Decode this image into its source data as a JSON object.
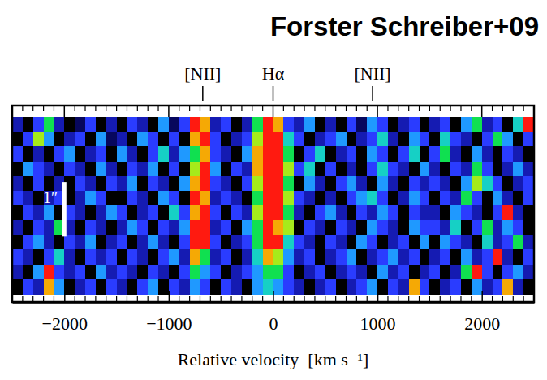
{
  "chart_data": {
    "type": "heatmap",
    "title": "Forster Schreiber+09",
    "x_label": "Relative velocity  [km s⁻¹]",
    "xlim": [
      -2500,
      2500
    ],
    "xticks": [
      {
        "value": -2000,
        "label": "−2000"
      },
      {
        "value": -1000,
        "label": "−1000"
      },
      0,
      1000,
      2000
    ],
    "minor_xticks": [
      -2400,
      -2300,
      -2200,
      -2100,
      -1900,
      -1800,
      -1700,
      -1600,
      -1500,
      -1400,
      -1300,
      -1200,
      -1100,
      -900,
      -800,
      -700,
      -600,
      -500,
      -400,
      -300,
      -200,
      -100,
      100,
      200,
      300,
      400,
      500,
      600,
      700,
      800,
      900,
      1100,
      1200,
      1300,
      1400,
      1500,
      1600,
      1700,
      1800,
      1900,
      2100,
      2200,
      2300,
      2400
    ],
    "ylim": [
      0,
      3.6
    ],
    "tick_labels": "x",
    "zlim": [
      0,
      9
    ],
    "lines": [
      {
        "label": "[NII]",
        "x": -674
      },
      {
        "label": "Hα",
        "x": 0
      },
      {
        "label": "[NII]",
        "x": 953
      }
    ],
    "scale_bar": {
      "label": "1″",
      "length": 1,
      "x": -2000,
      "y": 1.2
    },
    "x": [
      -2450,
      -2350,
      -2250,
      -2150,
      -2050,
      -1950,
      -1850,
      -1750,
      -1650,
      -1550,
      -1450,
      -1350,
      -1250,
      -1150,
      -1050,
      -950,
      -850,
      -750,
      -650,
      -550,
      -450,
      -350,
      -250,
      -150,
      -50,
      50,
      150,
      250,
      350,
      450,
      550,
      650,
      750,
      850,
      950,
      1050,
      1150,
      1250,
      1350,
      1450,
      1550,
      1650,
      1750,
      1850,
      1950,
      2050,
      2150,
      2250,
      2350,
      2450
    ],
    "y": [
      3.255,
      2.985,
      2.715,
      2.445,
      2.175,
      1.905,
      1.635,
      1.365,
      1.095,
      0.825,
      0.555,
      0.285
    ],
    "cells": [
      [
        2,
        0,
        3,
        6,
        2,
        0,
        1,
        3,
        0,
        2,
        0,
        3,
        2,
        0,
        4,
        1,
        3,
        9,
        8,
        2,
        3,
        0,
        2,
        6,
        9,
        8,
        3,
        2,
        4,
        0,
        2,
        0,
        3,
        1,
        4,
        3,
        0,
        2,
        3,
        0,
        2,
        3,
        0,
        4,
        6,
        2,
        3,
        0,
        5,
        9
      ],
      [
        0,
        3,
        7,
        4,
        0,
        2,
        3,
        0,
        4,
        1,
        2,
        0,
        4,
        3,
        0,
        3,
        0,
        8,
        9,
        3,
        0,
        2,
        3,
        7,
        9,
        9,
        5,
        3,
        0,
        2,
        3,
        4,
        0,
        2,
        3,
        5,
        2,
        0,
        4,
        3,
        0,
        5,
        3,
        2,
        0,
        3,
        6,
        4,
        0,
        3
      ],
      [
        3,
        0,
        2,
        0,
        3,
        4,
        0,
        2,
        3,
        0,
        4,
        2,
        0,
        3,
        5,
        2,
        4,
        6,
        8,
        3,
        2,
        0,
        4,
        8,
        9,
        9,
        6,
        0,
        3,
        5,
        0,
        2,
        3,
        0,
        4,
        3,
        0,
        3,
        5,
        0,
        3,
        6,
        2,
        0,
        4,
        2,
        0,
        3,
        2,
        0
      ],
      [
        0,
        4,
        3,
        2,
        0,
        3,
        2,
        0,
        4,
        2,
        0,
        3,
        2,
        4,
        0,
        3,
        0,
        7,
        9,
        4,
        0,
        3,
        2,
        8,
        9,
        9,
        7,
        3,
        5,
        0,
        3,
        0,
        2,
        0,
        3,
        5,
        3,
        2,
        0,
        4,
        2,
        0,
        3,
        2,
        6,
        3,
        0,
        2,
        4,
        2
      ],
      [
        2,
        0,
        3,
        0,
        2,
        0,
        3,
        2,
        0,
        3,
        2,
        4,
        0,
        3,
        2,
        0,
        4,
        8,
        9,
        3,
        2,
        0,
        3,
        7,
        9,
        9,
        6,
        0,
        4,
        2,
        0,
        3,
        4,
        2,
        0,
        4,
        2,
        0,
        3,
        2,
        3,
        2,
        0,
        4,
        7,
        5,
        3,
        0,
        2,
        3
      ],
      [
        3,
        2,
        0,
        2,
        3,
        0,
        2,
        4,
        3,
        0,
        0,
        3,
        2,
        0,
        4,
        3,
        0,
        9,
        8,
        2,
        3,
        2,
        0,
        6,
        9,
        9,
        7,
        3,
        2,
        0,
        2,
        0,
        3,
        4,
        5,
        3,
        0,
        2,
        4,
        3,
        0,
        3,
        2,
        6,
        3,
        0,
        4,
        2,
        0,
        3
      ],
      [
        0,
        3,
        2,
        4,
        0,
        3,
        2,
        0,
        2,
        4,
        3,
        0,
        2,
        3,
        0,
        5,
        3,
        8,
        9,
        3,
        0,
        3,
        2,
        7,
        9,
        9,
        6,
        2,
        0,
        3,
        4,
        2,
        0,
        3,
        2,
        4,
        3,
        0,
        3,
        2,
        2,
        0,
        4,
        3,
        2,
        0,
        3,
        9,
        2,
        0
      ],
      [
        2,
        0,
        3,
        2,
        6,
        2,
        0,
        3,
        2,
        0,
        2,
        4,
        3,
        0,
        3,
        2,
        4,
        9,
        9,
        2,
        3,
        0,
        4,
        6,
        9,
        8,
        7,
        0,
        3,
        2,
        0,
        3,
        2,
        0,
        4,
        3,
        2,
        0,
        4,
        3,
        3,
        2,
        5,
        0,
        3,
        6,
        2,
        4,
        3,
        0
      ],
      [
        0,
        3,
        4,
        2,
        0,
        3,
        2,
        4,
        0,
        2,
        3,
        0,
        2,
        4,
        2,
        0,
        3,
        9,
        9,
        3,
        0,
        2,
        3,
        6,
        9,
        9,
        5,
        3,
        2,
        0,
        3,
        2,
        0,
        4,
        3,
        0,
        2,
        3,
        0,
        4,
        0,
        4,
        3,
        2,
        0,
        5,
        2,
        3,
        6,
        2
      ],
      [
        3,
        2,
        0,
        3,
        5,
        2,
        0,
        3,
        2,
        3,
        0,
        3,
        2,
        0,
        3,
        4,
        2,
        8,
        6,
        2,
        3,
        0,
        2,
        5,
        8,
        7,
        4,
        2,
        3,
        0,
        2,
        3,
        4,
        0,
        2,
        3,
        4,
        2,
        3,
        0,
        2,
        3,
        0,
        4,
        2,
        3,
        9,
        2,
        0,
        3
      ],
      [
        2,
        0,
        4,
        9,
        3,
        2,
        3,
        0,
        4,
        2,
        3,
        2,
        0,
        3,
        2,
        0,
        3,
        6,
        4,
        3,
        0,
        2,
        3,
        4,
        6,
        6,
        3,
        0,
        2,
        3,
        0,
        2,
        3,
        2,
        0,
        4,
        2,
        3,
        0,
        2,
        3,
        0,
        2,
        6,
        9,
        3,
        0,
        3,
        4,
        2
      ],
      [
        0,
        3,
        2,
        8,
        4,
        0,
        2,
        3,
        0,
        3,
        2,
        0,
        3,
        4,
        0,
        3,
        2,
        4,
        3,
        0,
        3,
        2,
        0,
        4,
        5,
        4,
        3,
        2,
        0,
        2,
        3,
        0,
        2,
        3,
        4,
        0,
        3,
        2,
        8,
        3,
        0,
        2,
        3,
        0,
        4,
        2,
        3,
        8,
        2,
        0
      ]
    ]
  }
}
